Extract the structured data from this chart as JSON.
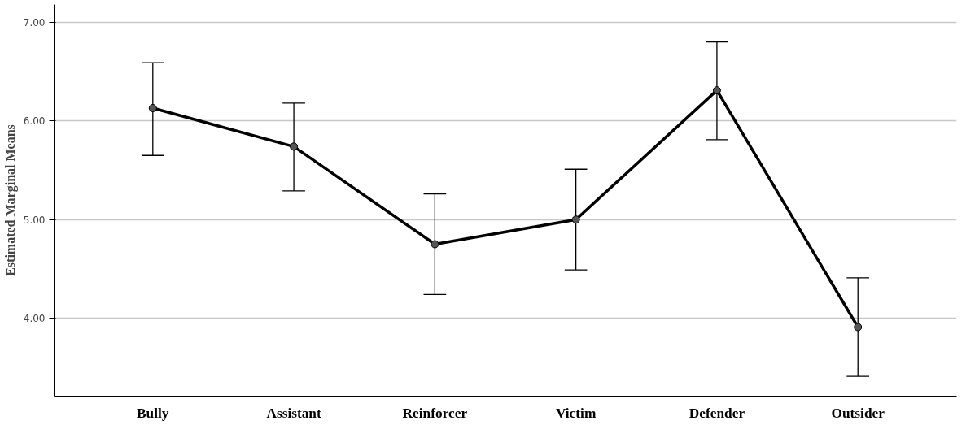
{
  "chart_data": {
    "type": "line",
    "ylabel": "Estimated Marginal Means",
    "categories": [
      "Bully",
      "Assistant",
      "Reinforcer",
      "Victim",
      "Defender",
      "Outsider"
    ],
    "series": [
      {
        "color": "#000000",
        "values": [
          6.13,
          5.74,
          4.75,
          5.0,
          6.31,
          3.91
        ],
        "errors": [
          [
            5.65,
            6.59
          ],
          [
            5.29,
            6.18
          ],
          [
            4.24,
            5.26
          ],
          [
            4.49,
            5.51
          ],
          [
            5.81,
            6.8
          ],
          [
            3.41,
            4.41
          ]
        ]
      }
    ],
    "ylim": [
      3.21,
      7.18
    ],
    "yticks": [
      {
        "value": 4,
        "label": "4.00"
      },
      {
        "value": 5,
        "label": "5.00"
      },
      {
        "value": 6,
        "label": "6.00"
      },
      {
        "value": 7,
        "label": "7.00"
      }
    ],
    "grid": "y",
    "marker": "circle",
    "line_style": "solid"
  }
}
